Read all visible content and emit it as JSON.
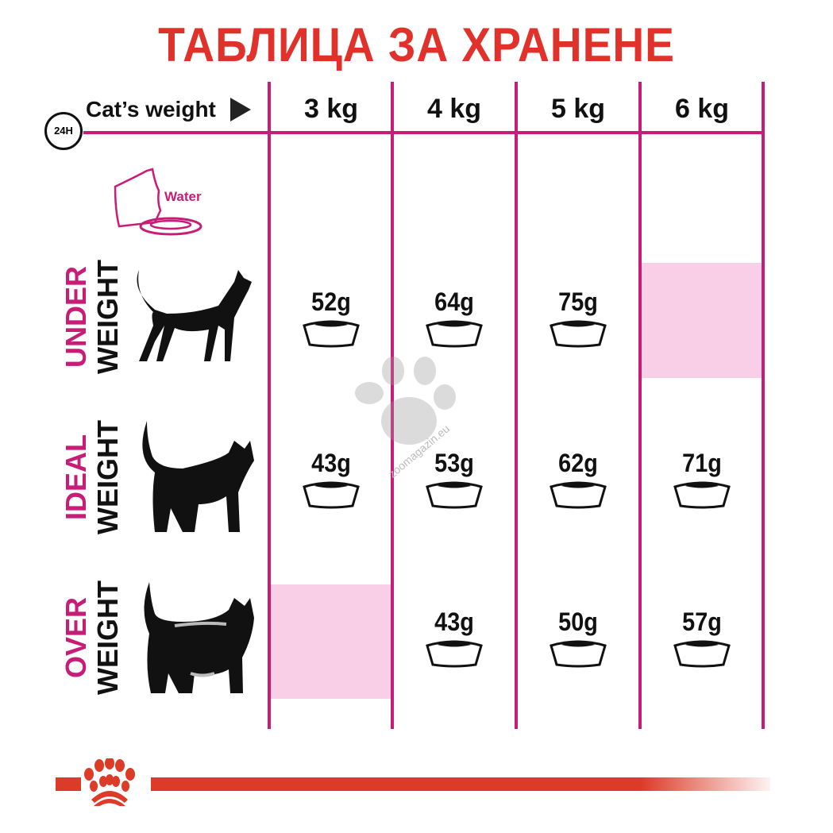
{
  "title": "ТАБЛИЦА ЗА ХРАНЕНЕ",
  "header": {
    "label": "Cat’s weight",
    "clock_label": "24H",
    "columns": [
      "3 kg",
      "4 kg",
      "5 kg",
      "6 kg"
    ]
  },
  "water_label": "Water",
  "rows": [
    {
      "label_top": "UNDER",
      "label_bottom": "WEIGHT",
      "values": [
        "52g",
        "64g",
        "75g",
        null
      ]
    },
    {
      "label_top": "IDEAL",
      "label_bottom": "WEIGHT",
      "values": [
        "43g",
        "53g",
        "62g",
        "71g"
      ]
    },
    {
      "label_top": "OVER",
      "label_bottom": "WEIGHT",
      "values": [
        null,
        "43g",
        "50g",
        "57g"
      ]
    }
  ],
  "watermark": "zoomagazin.eu",
  "colors": {
    "title": "#e0312a",
    "accent": "#c81d77",
    "empty_cell": "#f8cfe6",
    "brand": "#dc3b27"
  }
}
